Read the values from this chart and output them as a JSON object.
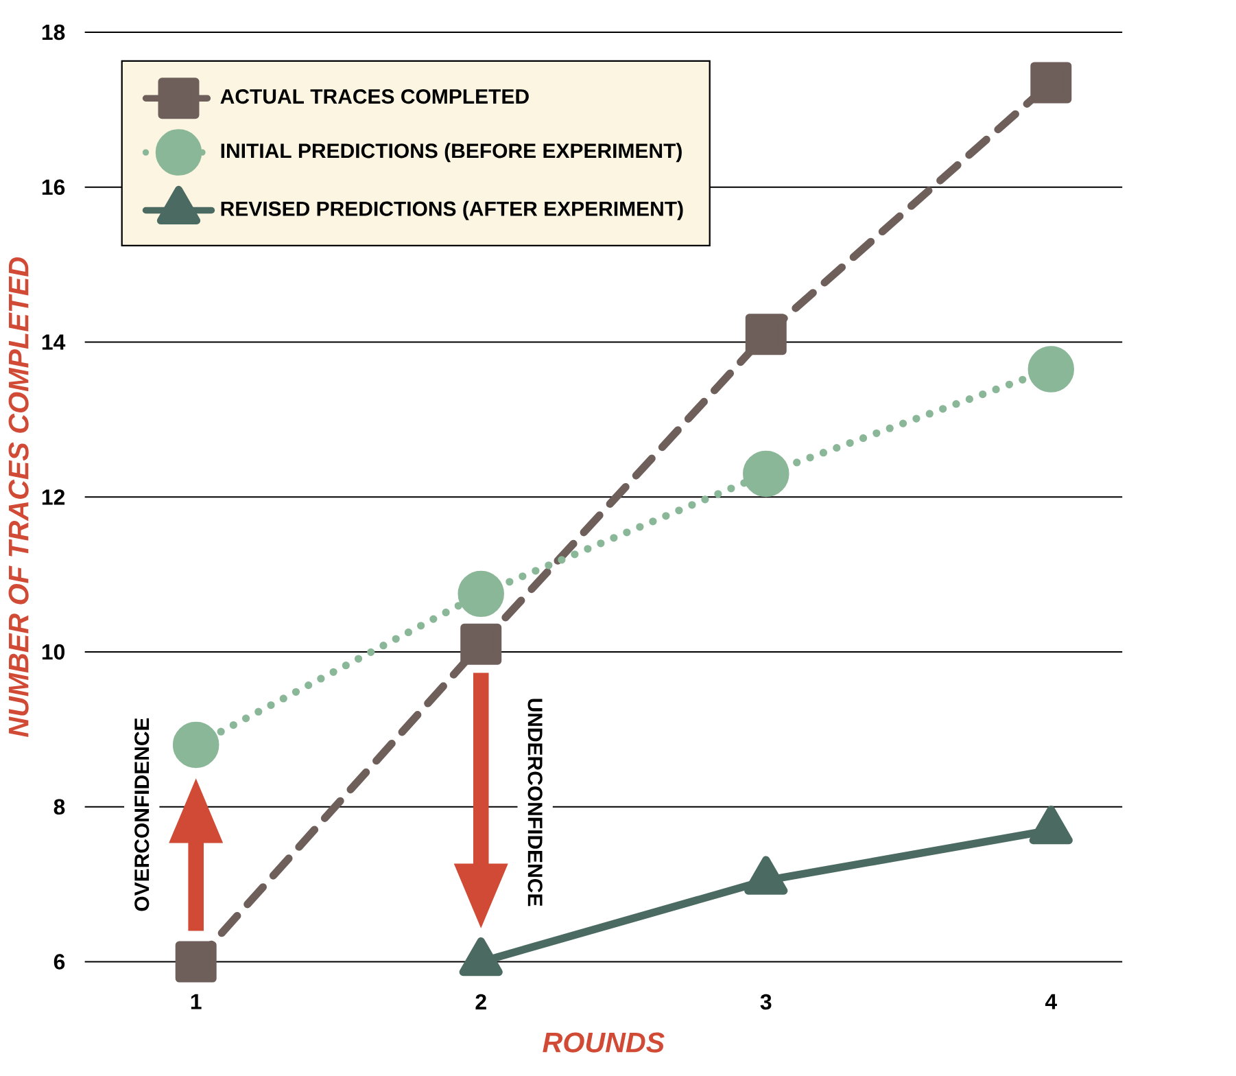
{
  "chart_data": {
    "type": "line",
    "xlabel": "ROUNDS",
    "ylabel": "NUMBER OF TRACES COMPLETED",
    "categories": [
      "1",
      "2",
      "3",
      "4"
    ],
    "series": [
      {
        "name": "ACTUAL TRACES COMPLETED",
        "color": "#6e5f5a",
        "values": [
          6,
          10.1,
          14.1,
          17.35
        ],
        "marker": "square",
        "line_style": "dashed"
      },
      {
        "name": "INITIAL PREDICTIONS (BEFORE EXPERIMENT)",
        "color": "#8ab797",
        "values": [
          8.8,
          10.75,
          12.3,
          13.65
        ],
        "marker": "circle",
        "line_style": "dotted"
      },
      {
        "name": "REVISED PREDICTIONS (AFTER EXPERIMENT)",
        "color": "#4a6a62",
        "values": [
          null,
          6,
          7.05,
          7.7
        ],
        "marker": "triangle",
        "line_style": "solid"
      }
    ],
    "ylim": [
      6,
      18
    ],
    "yticks": [
      6,
      8,
      10,
      12,
      14,
      16,
      18
    ],
    "grid": "y",
    "legend": "top left",
    "annotations": [
      "OVERCONFIDENCE",
      "UNDERCONFIDENCE"
    ]
  }
}
